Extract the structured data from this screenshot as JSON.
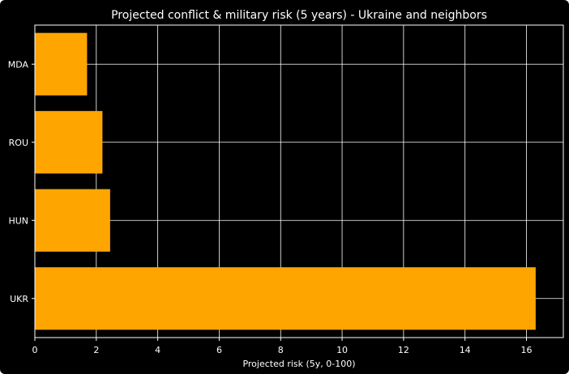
{
  "chart_data": {
    "type": "bar",
    "orientation": "horizontal",
    "title": "Projected conflict & military risk (5 years) - Ukraine and neighbors",
    "xlabel": "Projected risk (5y, 0-100)",
    "ylabel": "",
    "categories": [
      "UKR",
      "HUN",
      "ROU",
      "MDA"
    ],
    "values": [
      16.3,
      2.45,
      2.2,
      1.7
    ],
    "xlim": [
      0,
      17.2
    ],
    "xticks": [
      0,
      2,
      4,
      6,
      8,
      10,
      12,
      14,
      16
    ],
    "grid": true,
    "legend": "none",
    "colors": {
      "bar": "#ffa500",
      "background": "#000000",
      "grid": "#ffffff",
      "text": "#ffffff"
    }
  }
}
